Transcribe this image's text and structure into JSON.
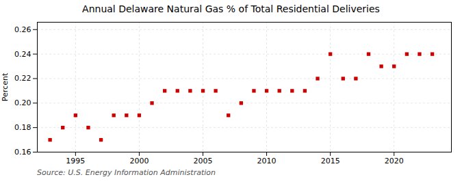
{
  "chart_data": {
    "type": "scatter",
    "title": "Annual Delaware Natural Gas % of Total Residential Deliveries",
    "ylabel": "Percent",
    "source": "Source: U.S. Energy Information Administration",
    "x": [
      1993,
      1994,
      1995,
      1996,
      1997,
      1998,
      1999,
      2000,
      2001,
      2002,
      2003,
      2004,
      2005,
      2006,
      2007,
      2008,
      2009,
      2010,
      2011,
      2012,
      2013,
      2014,
      2015,
      2016,
      2017,
      2018,
      2019,
      2020,
      2021,
      2022,
      2023
    ],
    "values": [
      0.17,
      0.18,
      0.19,
      0.18,
      0.17,
      0.19,
      0.19,
      0.19,
      0.2,
      0.21,
      0.21,
      0.21,
      0.21,
      0.21,
      0.19,
      0.2,
      0.21,
      0.21,
      0.21,
      0.21,
      0.21,
      0.22,
      0.24,
      0.22,
      0.22,
      0.24,
      0.23,
      0.23,
      0.24,
      0.24,
      0.24
    ],
    "color": "#cc0000",
    "marker": "square",
    "xlim": [
      1992.0,
      2024.5
    ],
    "xticks": [
      1995,
      2000,
      2005,
      2010,
      2015,
      2020
    ],
    "ylim": [
      0.16,
      0.266
    ],
    "yticks": [
      0.16,
      0.18,
      {
        "value": 0.2,
        "label": "0.20"
      },
      0.22,
      0.24,
      0.26
    ],
    "grid": true
  }
}
